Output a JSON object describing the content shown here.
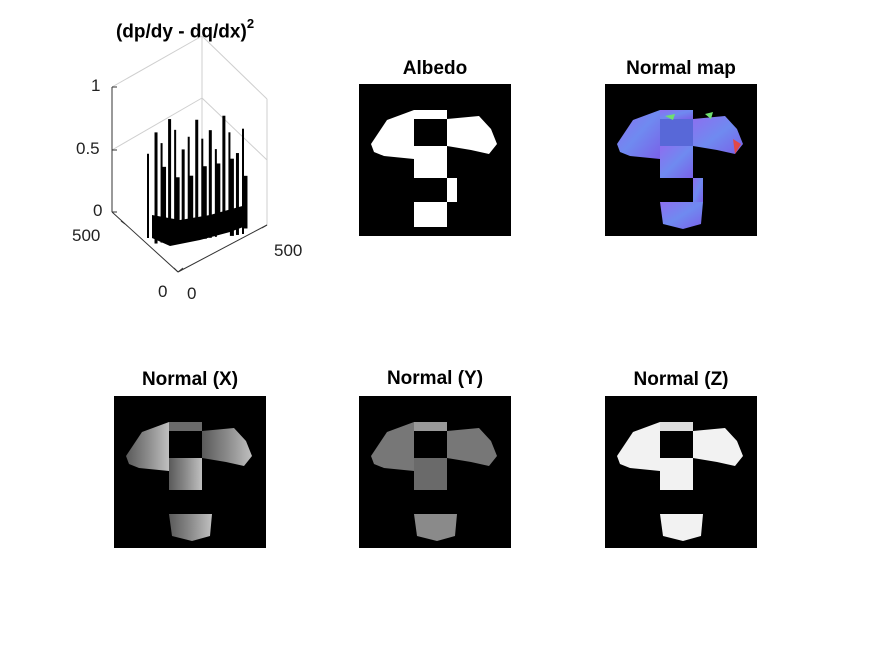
{
  "figure": {
    "panels": [
      {
        "id": "surface",
        "title_main": "(dp/dy - dq/dx)",
        "title_sup": "2"
      },
      {
        "id": "albedo",
        "title": "Albedo"
      },
      {
        "id": "normal_map",
        "title": "Normal map"
      },
      {
        "id": "normal_x",
        "title": "Normal (X)"
      },
      {
        "id": "normal_y",
        "title": "Normal (Y)"
      },
      {
        "id": "normal_z",
        "title": "Normal (Z)"
      }
    ]
  },
  "chart_data": {
    "type": "surface3d",
    "title": "(dp/dy - dq/dx)^2",
    "z_ticks": [
      "0",
      "0.5",
      "1"
    ],
    "x_ticks": [
      "0",
      "500"
    ],
    "y_ticks": [
      "0",
      "500"
    ],
    "zlim": [
      0,
      1
    ],
    "xlim": [
      0,
      500
    ],
    "ylim": [
      0,
      500
    ],
    "spikes": [
      0.72,
      0.95,
      0.6,
      0.85,
      1.0,
      0.55,
      0.9,
      0.78,
      0.5,
      0.88,
      0.97,
      0.62,
      0.8,
      0.92,
      0.58,
      0.75,
      0.98,
      0.66,
      0.83,
      0.7,
      0.45,
      0.9
    ]
  },
  "colors": {
    "background": "#ffffff",
    "image_bg": "#000000",
    "normal_map_base": "#6f6ef0",
    "normal_map_green": "#6fe070",
    "normal_map_red": "#e04848"
  }
}
